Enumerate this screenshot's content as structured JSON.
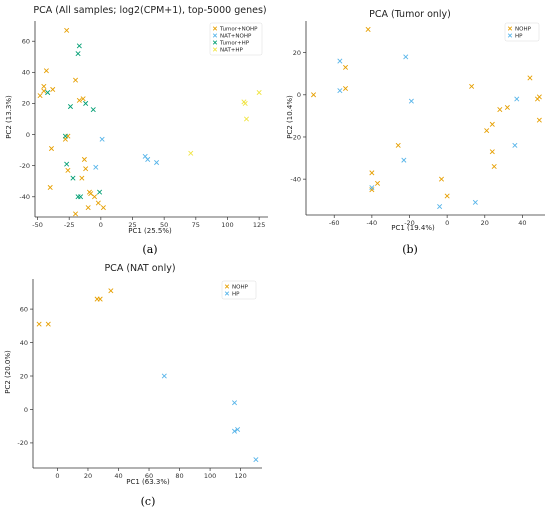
{
  "colors": {
    "orange": "#E69F00",
    "blue": "#56B4E9",
    "green": "#009E73",
    "yellow": "#F0E442"
  },
  "chart_data": [
    {
      "panel": "(a)",
      "type": "scatter",
      "title": "PCA (All samples; log2(CPM+1), top-5000 genes)",
      "xlabel": "PC1 (25.5%)",
      "ylabel": "PC2 (13.3%)",
      "xlim": [
        -52,
        132
      ],
      "ylim": [
        -53,
        73
      ],
      "xticks": [
        -50,
        -25,
        0,
        25,
        50,
        75,
        100,
        125
      ],
      "yticks": [
        -40,
        -20,
        0,
        20,
        40,
        60
      ],
      "marker": "x",
      "grid": false,
      "legend_position": "top-right",
      "series": [
        {
          "name": "Tumor+NOHP",
          "color": "orange",
          "points": [
            [
              -27,
              67
            ],
            [
              -45,
              31
            ],
            [
              -43,
              41
            ],
            [
              -38,
              29
            ],
            [
              -48,
              25
            ],
            [
              -20,
              35
            ],
            [
              -17,
              22
            ],
            [
              -14,
              23
            ],
            [
              -39,
              -9
            ],
            [
              -26,
              -1
            ],
            [
              -26,
              -23
            ],
            [
              -13,
              -16
            ],
            [
              -12,
              -22
            ],
            [
              -9,
              -37
            ],
            [
              -8,
              -38
            ],
            [
              -10,
              -47
            ],
            [
              -15,
              -28
            ],
            [
              -40,
              -34
            ],
            [
              -20,
              -51
            ],
            [
              -2,
              -44
            ],
            [
              2,
              -47
            ],
            [
              -5,
              -40
            ],
            [
              -28,
              -3
            ],
            [
              -45,
              28
            ]
          ]
        },
        {
          "name": "NAT+NOHP",
          "color": "blue",
          "points": [
            [
              -4,
              -21
            ],
            [
              1,
              -3
            ],
            [
              35,
              -14
            ],
            [
              37,
              -16
            ],
            [
              44,
              -18
            ]
          ]
        },
        {
          "name": "Tumor+HP",
          "color": "green",
          "points": [
            [
              -17,
              57
            ],
            [
              -18,
              52
            ],
            [
              -42,
              27
            ],
            [
              -24,
              18
            ],
            [
              -12,
              20
            ],
            [
              -6,
              16
            ],
            [
              -28,
              -1
            ],
            [
              -27,
              -19
            ],
            [
              -22,
              -28
            ],
            [
              -18,
              -40
            ],
            [
              -1,
              -37
            ],
            [
              -16,
              -40
            ]
          ]
        },
        {
          "name": "NAT+HP",
          "color": "yellow",
          "points": [
            [
              113,
              21
            ],
            [
              114,
              20
            ],
            [
              115,
              10
            ],
            [
              125,
              27
            ],
            [
              71,
              -12
            ]
          ]
        }
      ]
    },
    {
      "panel": "(b)",
      "type": "scatter",
      "title": "PCA (Tumor only)",
      "xlabel": "PC1 (19.4%)",
      "ylabel": "PC2 (10.4%)",
      "xlim": [
        -75,
        52
      ],
      "ylim": [
        -57,
        35
      ],
      "xticks": [
        -60,
        -40,
        -20,
        0,
        20,
        40
      ],
      "yticks": [
        -40,
        -20,
        0,
        20
      ],
      "marker": "x",
      "grid": false,
      "legend_position": "top-right",
      "series": [
        {
          "name": "NOHP",
          "color": "orange",
          "points": [
            [
              -42,
              31
            ],
            [
              -71,
              0
            ],
            [
              -54,
              13
            ],
            [
              -54,
              3
            ],
            [
              -26,
              -24
            ],
            [
              -40,
              -37
            ],
            [
              -37,
              -42
            ],
            [
              -40,
              -45
            ],
            [
              -3,
              -40
            ],
            [
              0,
              -48
            ],
            [
              13,
              4
            ],
            [
              21,
              -17
            ],
            [
              24,
              -14
            ],
            [
              28,
              -7
            ],
            [
              32,
              -6
            ],
            [
              24,
              -27
            ],
            [
              25,
              -34
            ],
            [
              44,
              8
            ],
            [
              49,
              -1
            ],
            [
              48,
              -2
            ],
            [
              49,
              -12
            ]
          ]
        },
        {
          "name": "HP",
          "color": "blue",
          "points": [
            [
              -22,
              18
            ],
            [
              -57,
              16
            ],
            [
              -57,
              2
            ],
            [
              -19,
              -3
            ],
            [
              -23,
              -31
            ],
            [
              -40,
              -44
            ],
            [
              -4,
              -53
            ],
            [
              15,
              -51
            ],
            [
              36,
              -24
            ],
            [
              37,
              -2
            ]
          ]
        }
      ]
    },
    {
      "panel": "(c)",
      "type": "scatter",
      "title": "PCA (NAT only)",
      "xlabel": "PC1 (63.3%)",
      "ylabel": "PC2 (20.0%)",
      "xlim": [
        -16,
        134
      ],
      "ylim": [
        -35,
        78
      ],
      "xticks": [
        0,
        20,
        40,
        60,
        80,
        100,
        120
      ],
      "yticks": [
        -20,
        0,
        20,
        40,
        60
      ],
      "marker": "x",
      "grid": false,
      "legend_position": "top-right",
      "series": [
        {
          "name": "NOHP",
          "color": "orange",
          "points": [
            [
              -12,
              51
            ],
            [
              -6,
              51
            ],
            [
              26,
              66
            ],
            [
              28,
              66
            ],
            [
              35,
              71
            ]
          ]
        },
        {
          "name": "HP",
          "color": "blue",
          "points": [
            [
              70,
              20
            ],
            [
              116,
              4
            ],
            [
              116,
              -13
            ],
            [
              118,
              -12
            ],
            [
              130,
              -30
            ]
          ]
        }
      ]
    }
  ]
}
